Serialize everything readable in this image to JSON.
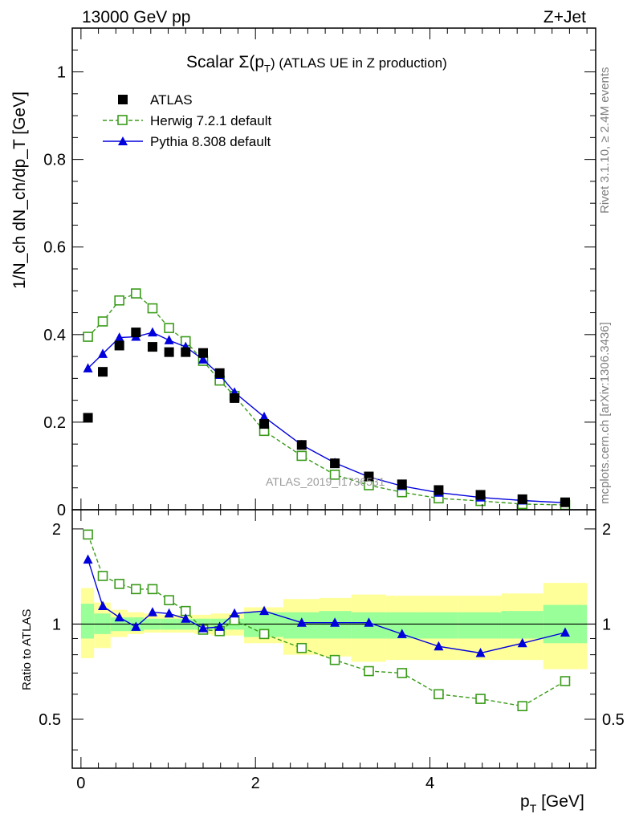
{
  "header": {
    "left": "13000 GeV pp",
    "right": "Z+Jet"
  },
  "side_labels": {
    "rivet": "Rivet 3.1.10, ≥ 2.4M events",
    "mcplots": "mcplots.cern.ch [arXiv:1306.3436]"
  },
  "chart_data": [
    {
      "type": "scatter",
      "title": "Scalar Σ(p_T) (ATLAS UE in Z production)",
      "title_main": "Scalar Σ(p",
      "title_sub": "T",
      "title_tail": ") (ATLAS UE in Z production)",
      "ylabel": "1/N_ch dN_ch/dp_T [GeV]",
      "watermark": "ATLAS_2019_I1736531",
      "xlim": [
        -0.1,
        5.9
      ],
      "ylim": [
        0,
        1.1
      ],
      "yticks": [
        0,
        0.2,
        0.4,
        0.6,
        0.8,
        1
      ],
      "ytick_labels": [
        "0",
        "0.2",
        "0.4",
        "0.6",
        "0.8",
        "1"
      ],
      "legend_position": "top-left",
      "x": [
        0.08,
        0.25,
        0.44,
        0.63,
        0.82,
        1.01,
        1.2,
        1.4,
        1.59,
        1.76,
        2.1,
        2.53,
        2.91,
        3.3,
        3.68,
        4.1,
        4.58,
        5.06,
        5.55
      ],
      "series": [
        {
          "name": "ATLAS",
          "style": "data",
          "color": "#000000",
          "values": [
            0.21,
            0.315,
            0.375,
            0.405,
            0.372,
            0.36,
            0.36,
            0.358,
            0.312,
            0.255,
            0.196,
            0.148,
            0.106,
            0.076,
            0.058,
            0.045,
            0.034,
            0.024,
            0.017
          ]
        },
        {
          "name": "Herwig 7.2.1 default",
          "style": "herwig",
          "color": "#3a9b1a",
          "values": [
            0.395,
            0.43,
            0.478,
            0.494,
            0.46,
            0.415,
            0.385,
            0.34,
            0.295,
            0.26,
            0.18,
            0.123,
            0.08,
            0.056,
            0.04,
            0.026,
            0.02,
            0.013,
            0.011
          ]
        },
        {
          "name": "Pythia 8.308 default",
          "style": "pythia",
          "color": "#0000dd",
          "values": [
            0.323,
            0.356,
            0.393,
            0.395,
            0.405,
            0.387,
            0.372,
            0.343,
            0.308,
            0.268,
            0.212,
            0.148,
            0.107,
            0.075,
            0.054,
            0.039,
            0.028,
            0.021,
            0.016
          ]
        }
      ]
    },
    {
      "type": "line",
      "ylabel": "Ratio to ATLAS",
      "xlabel": "p_T [GeV]",
      "xlabel_main": "p",
      "xlabel_sub": "T",
      "xlabel_tail": " [GeV]",
      "xlim": [
        -0.1,
        5.9
      ],
      "ylim": [
        0.35,
        2.3
      ],
      "xticks": [
        0,
        2,
        4
      ],
      "xtick_labels": [
        "0",
        "2",
        "4"
      ],
      "yticks": [
        0.5,
        1,
        2
      ],
      "ytick_labels": [
        "0.5",
        "1",
        "2"
      ],
      "bin_edges": [
        0,
        0.15,
        0.34,
        0.53,
        0.72,
        0.91,
        1.1,
        1.3,
        1.49,
        1.68,
        1.87,
        2.32,
        2.73,
        3.1,
        3.49,
        3.88,
        4.32,
        4.82,
        5.3,
        5.8
      ],
      "band_inner_upper": [
        1.16,
        1.08,
        1.05,
        1.05,
        1.04,
        1.04,
        1.04,
        1.04,
        1.04,
        1.04,
        1.09,
        1.09,
        1.1,
        1.09,
        1.09,
        1.09,
        1.09,
        1.1,
        1.15
      ],
      "band_inner_lower": [
        0.9,
        0.93,
        0.95,
        0.95,
        0.96,
        0.96,
        0.96,
        0.96,
        0.96,
        0.96,
        0.91,
        0.9,
        0.9,
        0.9,
        0.9,
        0.9,
        0.9,
        0.9,
        0.87
      ],
      "band_outer_upper": [
        1.3,
        1.17,
        1.11,
        1.09,
        1.08,
        1.07,
        1.07,
        1.07,
        1.08,
        1.08,
        1.13,
        1.2,
        1.21,
        1.24,
        1.23,
        1.23,
        1.23,
        1.25,
        1.35
      ],
      "band_outer_lower": [
        0.78,
        0.84,
        0.91,
        0.93,
        0.94,
        0.94,
        0.94,
        0.93,
        0.92,
        0.92,
        0.87,
        0.8,
        0.79,
        0.76,
        0.77,
        0.77,
        0.77,
        0.77,
        0.72
      ],
      "x": [
        0.08,
        0.25,
        0.44,
        0.63,
        0.82,
        1.01,
        1.2,
        1.4,
        1.59,
        1.76,
        2.1,
        2.53,
        2.91,
        3.3,
        3.68,
        4.1,
        4.58,
        5.06,
        5.55
      ],
      "series": [
        {
          "name": "Herwig 7.2.1 default",
          "style": "herwig",
          "color": "#3a9b1a",
          "values": [
            1.92,
            1.42,
            1.34,
            1.29,
            1.29,
            1.19,
            1.1,
            0.96,
            0.95,
            1.03,
            0.93,
            0.84,
            0.77,
            0.71,
            0.7,
            0.6,
            0.58,
            0.55,
            0.66
          ]
        },
        {
          "name": "Pythia 8.308 default",
          "style": "pythia",
          "color": "#0000dd",
          "values": [
            1.6,
            1.14,
            1.05,
            0.98,
            1.09,
            1.08,
            1.04,
            0.97,
            0.98,
            1.08,
            1.1,
            1.01,
            1.01,
            1.01,
            0.93,
            0.85,
            0.81,
            0.87,
            0.94
          ]
        }
      ]
    }
  ]
}
